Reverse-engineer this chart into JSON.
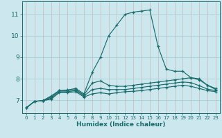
{
  "xlabel": "Humidex (Indice chaleur)",
  "background_color": "#cce8ee",
  "grid_color_main": "#a8cdd4",
  "grid_color_sub": "#e8b0b0",
  "line_color": "#1a6b6b",
  "xlim": [
    -0.5,
    23.5
  ],
  "ylim": [
    6.4,
    11.6
  ],
  "xticks": [
    0,
    1,
    2,
    3,
    4,
    5,
    6,
    7,
    8,
    9,
    10,
    11,
    12,
    13,
    14,
    15,
    16,
    17,
    18,
    19,
    20,
    21,
    22,
    23
  ],
  "yticks": [
    7,
    8,
    9,
    10,
    11
  ],
  "series": [
    [
      6.65,
      6.95,
      6.98,
      7.2,
      7.45,
      7.48,
      7.55,
      7.3,
      8.3,
      9.0,
      10.0,
      10.5,
      11.0,
      11.1,
      11.15,
      11.2,
      9.5,
      8.45,
      8.35,
      8.35,
      8.05,
      8.0,
      7.7,
      7.5
    ],
    [
      6.65,
      6.95,
      6.98,
      7.15,
      7.45,
      7.45,
      7.5,
      7.25,
      7.8,
      7.9,
      7.7,
      7.65,
      7.65,
      7.7,
      7.75,
      7.8,
      7.85,
      7.9,
      7.95,
      8.0,
      8.05,
      7.95,
      7.7,
      7.55
    ],
    [
      6.65,
      6.95,
      6.98,
      7.1,
      7.4,
      7.4,
      7.45,
      7.2,
      7.5,
      7.55,
      7.5,
      7.5,
      7.5,
      7.55,
      7.6,
      7.65,
      7.7,
      7.75,
      7.8,
      7.85,
      7.82,
      7.68,
      7.52,
      7.45
    ],
    [
      6.65,
      6.95,
      6.98,
      7.05,
      7.35,
      7.35,
      7.4,
      7.15,
      7.3,
      7.35,
      7.3,
      7.35,
      7.4,
      7.42,
      7.45,
      7.5,
      7.55,
      7.6,
      7.65,
      7.7,
      7.65,
      7.55,
      7.45,
      7.4
    ]
  ]
}
